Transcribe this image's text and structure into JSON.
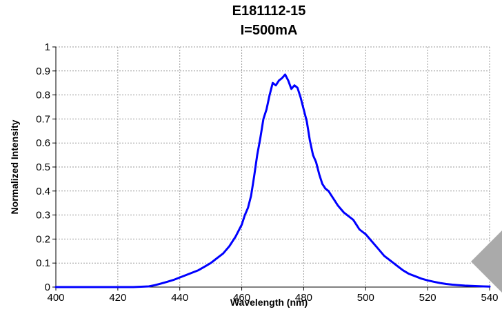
{
  "chart_data": {
    "type": "line",
    "title": "E181112-15",
    "subtitle": "I=500mA",
    "xlabel": "Wavelength (nm)",
    "ylabel": "Normalized Intensity",
    "xlim": [
      400,
      540
    ],
    "ylim": [
      0,
      1
    ],
    "x_ticks": [
      "400",
      "420",
      "440",
      "460",
      "480",
      "500",
      "520",
      "540"
    ],
    "y_ticks": [
      "0",
      "0.1",
      "0.2",
      "0.3",
      "0.4",
      "0.5",
      "0.6",
      "0.7",
      "0.8",
      "0.9",
      "1"
    ],
    "grid": true,
    "legend": "none",
    "series": [
      {
        "color": "#0000ff",
        "x": [
          400,
          410,
          420,
          425,
          430,
          432,
          434,
          436,
          438,
          440,
          442,
          444,
          446,
          448,
          450,
          452,
          454,
          456,
          458,
          460,
          461,
          462,
          463,
          464,
          465,
          466,
          467,
          468,
          469,
          470,
          471,
          472,
          473,
          474,
          475,
          476,
          477,
          478,
          479,
          480,
          481,
          482,
          483,
          484,
          485,
          486,
          487,
          488,
          489,
          490,
          491,
          492,
          493,
          494,
          495,
          496,
          497,
          498,
          499,
          500,
          502,
          504,
          506,
          508,
          510,
          512,
          514,
          516,
          518,
          520,
          522,
          524,
          526,
          528,
          530,
          532,
          534,
          536,
          538,
          540
        ],
        "y": [
          0.0,
          0.0,
          0.0,
          0.0,
          0.003,
          0.008,
          0.015,
          0.022,
          0.03,
          0.04,
          0.05,
          0.06,
          0.07,
          0.085,
          0.1,
          0.12,
          0.14,
          0.17,
          0.21,
          0.26,
          0.3,
          0.33,
          0.38,
          0.46,
          0.55,
          0.62,
          0.7,
          0.74,
          0.8,
          0.85,
          0.84,
          0.86,
          0.87,
          0.885,
          0.86,
          0.825,
          0.84,
          0.83,
          0.79,
          0.74,
          0.69,
          0.61,
          0.55,
          0.52,
          0.47,
          0.43,
          0.41,
          0.4,
          0.38,
          0.36,
          0.34,
          0.325,
          0.31,
          0.3,
          0.29,
          0.28,
          0.26,
          0.24,
          0.23,
          0.22,
          0.19,
          0.16,
          0.13,
          0.11,
          0.09,
          0.07,
          0.055,
          0.045,
          0.035,
          0.028,
          0.022,
          0.017,
          0.013,
          0.01,
          0.008,
          0.006,
          0.005,
          0.004,
          0.003,
          0.002
        ]
      }
    ]
  }
}
